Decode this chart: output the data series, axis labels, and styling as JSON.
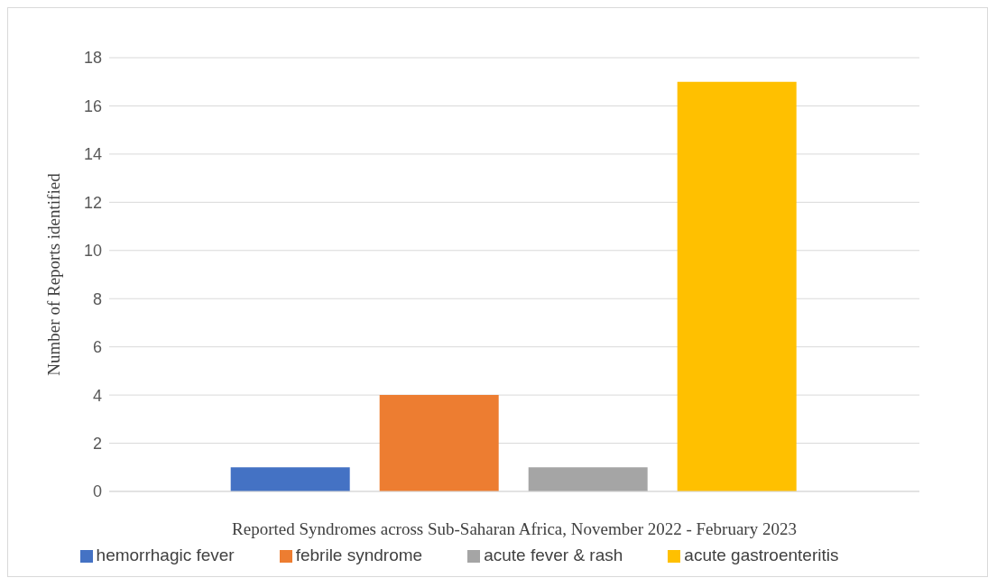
{
  "chart_data": {
    "type": "bar",
    "xlabel": "Reported Syndromes across Sub-Saharan Africa, November 2022 - February 2023",
    "ylabel": "Number of Reports identified",
    "categories": [
      null
    ],
    "series": [
      {
        "name": "hemorrhagic fever",
        "color": "#4472c4",
        "values": [
          1
        ]
      },
      {
        "name": "febrile syndrome",
        "color": "#ed7d31",
        "values": [
          4
        ]
      },
      {
        "name": "acute fever & rash",
        "color": "#a5a5a5",
        "values": [
          1
        ]
      },
      {
        "name": "acute gastroenteritis",
        "color": "#ffc000",
        "values": [
          17
        ]
      }
    ],
    "ylim": [
      0,
      18
    ],
    "yticks": [
      0,
      2,
      4,
      6,
      8,
      10,
      12,
      14,
      16,
      18
    ],
    "grid": "y",
    "legend": "bottom"
  }
}
